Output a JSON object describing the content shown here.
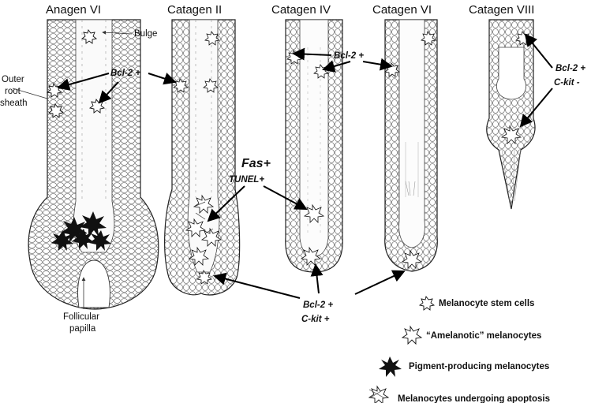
{
  "stages": {
    "anagen_vi": "Anagen VI",
    "catagen_ii": "Catagen II",
    "catagen_iv": "Catagen IV",
    "catagen_vi": "Catagen VI",
    "catagen_viii": "Catagen VIII"
  },
  "labels": {
    "bulge": "Bulge",
    "outer_root_sheath": [
      "Outer",
      "root",
      "sheath"
    ],
    "follicular_papilla": [
      "Follicular",
      "papilla"
    ],
    "bcl2_plus": "Bcl-2 +",
    "bcl2_ckit_plus": [
      "Bcl-2 +",
      "C-kit +"
    ],
    "bcl2_ckit_minus": [
      "Bcl-2 +",
      "C-kit -"
    ],
    "fas_plus": "Fas+",
    "tunel_plus": "TUNEL+"
  },
  "legend": [
    {
      "icon": "stem-cell-icon",
      "text": "Melanocyte stem cells"
    },
    {
      "icon": "amelanotic-melanocyte-icon",
      "text": "“Amelanotic” melanocytes"
    },
    {
      "icon": "pigment-melanocyte-icon",
      "text": "Pigment-producing melanocytes"
    },
    {
      "icon": "apoptotic-melanocyte-icon",
      "text": "Melanocytes undergoing apoptosis"
    }
  ]
}
